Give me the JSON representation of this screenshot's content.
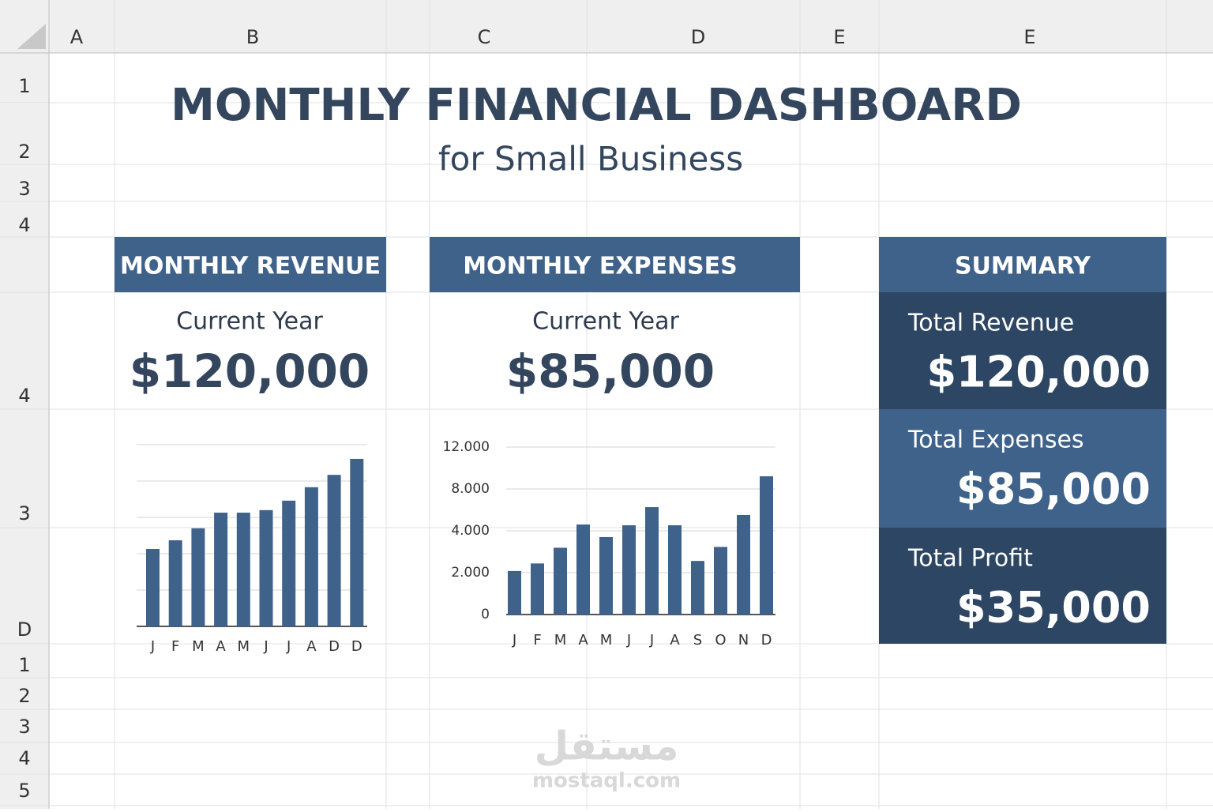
{
  "columns": [
    "A",
    "B",
    "C",
    "D",
    "E",
    "E"
  ],
  "rows": [
    "1",
    "2",
    "3",
    "4",
    "4",
    "3",
    "D",
    "1",
    "2",
    "3",
    "4",
    "5"
  ],
  "header": {
    "title": "MONTHLY FINANCIAL DASHBOARD",
    "subtitle": "for Small Business"
  },
  "revenue_panel": {
    "title": "MONTHLY REVENUE",
    "label": "Current Year",
    "amount": "$120,000"
  },
  "expenses_panel": {
    "title": "MONTHLY EXPENSES",
    "label": "Current Year",
    "amount": "$85,000"
  },
  "summary": {
    "title": "SUMMARY",
    "items": [
      {
        "label": "Total Revenue",
        "amount": "$120,000"
      },
      {
        "label": "Total Expenses",
        "amount": "$85,000"
      },
      {
        "label": "Total Profit",
        "amount": "$35,000"
      }
    ]
  },
  "chart_data": [
    {
      "type": "bar",
      "color": "#3f628b",
      "categories": [
        "J",
        "F",
        "M",
        "A",
        "M",
        "J",
        "J",
        "A",
        "D",
        "D"
      ],
      "values": [
        2.13,
        2.37,
        2.7,
        3.13,
        3.13,
        3.2,
        3.46,
        3.83,
        4.17,
        4.61
      ],
      "ylim": [
        0,
        5
      ],
      "gridlines": [
        0,
        1,
        2,
        3,
        4,
        5
      ]
    },
    {
      "type": "bar",
      "color": "#3f628b",
      "categories": [
        "J",
        "F",
        "M",
        "A",
        "M",
        "J",
        "J",
        "A",
        "S",
        "O",
        "N",
        "D"
      ],
      "values": [
        2080,
        2440,
        3190,
        4600,
        3700,
        4530,
        6260,
        4530,
        2560,
        3230,
        5510,
        9210
      ],
      "ylim": [
        0,
        12000
      ],
      "yticks": [
        {
          "value": 12000,
          "label": "12.000"
        },
        {
          "value": 8000,
          "label": "8.000"
        },
        {
          "value": 4000,
          "label": "4.000"
        },
        {
          "value": 2000,
          "label": "2.000"
        },
        0
      ],
      "grid": true
    }
  ],
  "watermark": {
    "arabic": "مستقل",
    "latin": "mostaql.com"
  }
}
